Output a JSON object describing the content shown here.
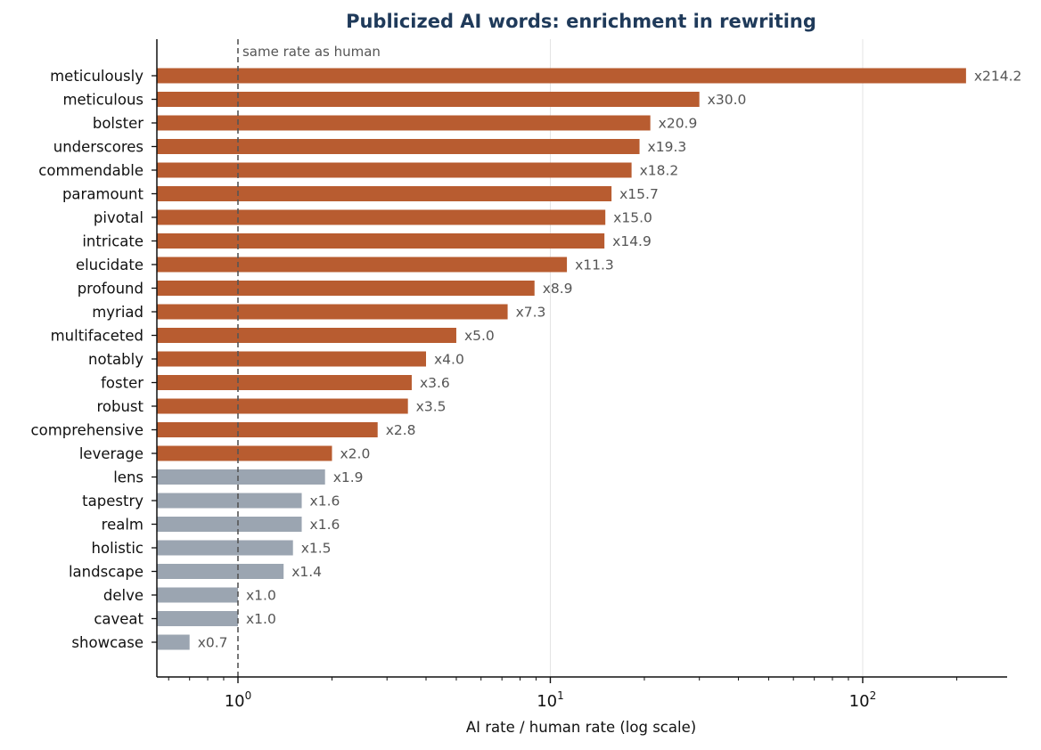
{
  "chart_data": {
    "type": "bar",
    "orientation": "horizontal",
    "title": "Publicized AI words: enrichment in rewriting",
    "xlabel": "AI rate / human rate (log scale)",
    "ylabel": "",
    "x_scale": "log",
    "xlim": [
      0.55,
      290
    ],
    "x_ticks": [
      {
        "value": 1,
        "base": "10",
        "exp": "0"
      },
      {
        "value": 10,
        "base": "10",
        "exp": "1"
      },
      {
        "value": 100,
        "base": "10",
        "exp": "2"
      }
    ],
    "grid": "vertical gridlines at major ticks",
    "reference_line": {
      "value": 1,
      "label": "same rate as human",
      "style": "dashed"
    },
    "colors": {
      "above_threshold": "#b85c30",
      "below_threshold": "#9ba5b1",
      "title": "#1f3a5a",
      "reference": "#555555"
    },
    "value_label_prefix": "x",
    "categories": [
      "meticulously",
      "meticulous",
      "bolster",
      "underscores",
      "commendable",
      "paramount",
      "pivotal",
      "intricate",
      "elucidate",
      "profound",
      "myriad",
      "multifaceted",
      "notably",
      "foster",
      "robust",
      "comprehensive",
      "leverage",
      "lens",
      "tapestry",
      "realm",
      "holistic",
      "landscape",
      "delve",
      "caveat",
      "showcase"
    ],
    "values": [
      214.2,
      30.0,
      20.9,
      19.3,
      18.2,
      15.7,
      15.0,
      14.9,
      11.3,
      8.9,
      7.3,
      5.0,
      4.0,
      3.6,
      3.5,
      2.8,
      2.0,
      1.9,
      1.6,
      1.6,
      1.5,
      1.4,
      1.0,
      1.0,
      0.7
    ],
    "value_labels": [
      "x214.2",
      "x30.0",
      "x20.9",
      "x19.3",
      "x18.2",
      "x15.7",
      "x15.0",
      "x14.9",
      "x11.3",
      "x8.9",
      "x7.3",
      "x5.0",
      "x4.0",
      "x3.6",
      "x3.5",
      "x2.8",
      "x2.0",
      "x1.9",
      "x1.6",
      "x1.6",
      "x1.5",
      "x1.4",
      "x1.0",
      "x1.0",
      "x0.7"
    ],
    "highlighted": [
      true,
      true,
      true,
      true,
      true,
      true,
      true,
      true,
      true,
      true,
      true,
      true,
      true,
      true,
      true,
      true,
      true,
      false,
      false,
      false,
      false,
      false,
      false,
      false,
      false
    ]
  }
}
